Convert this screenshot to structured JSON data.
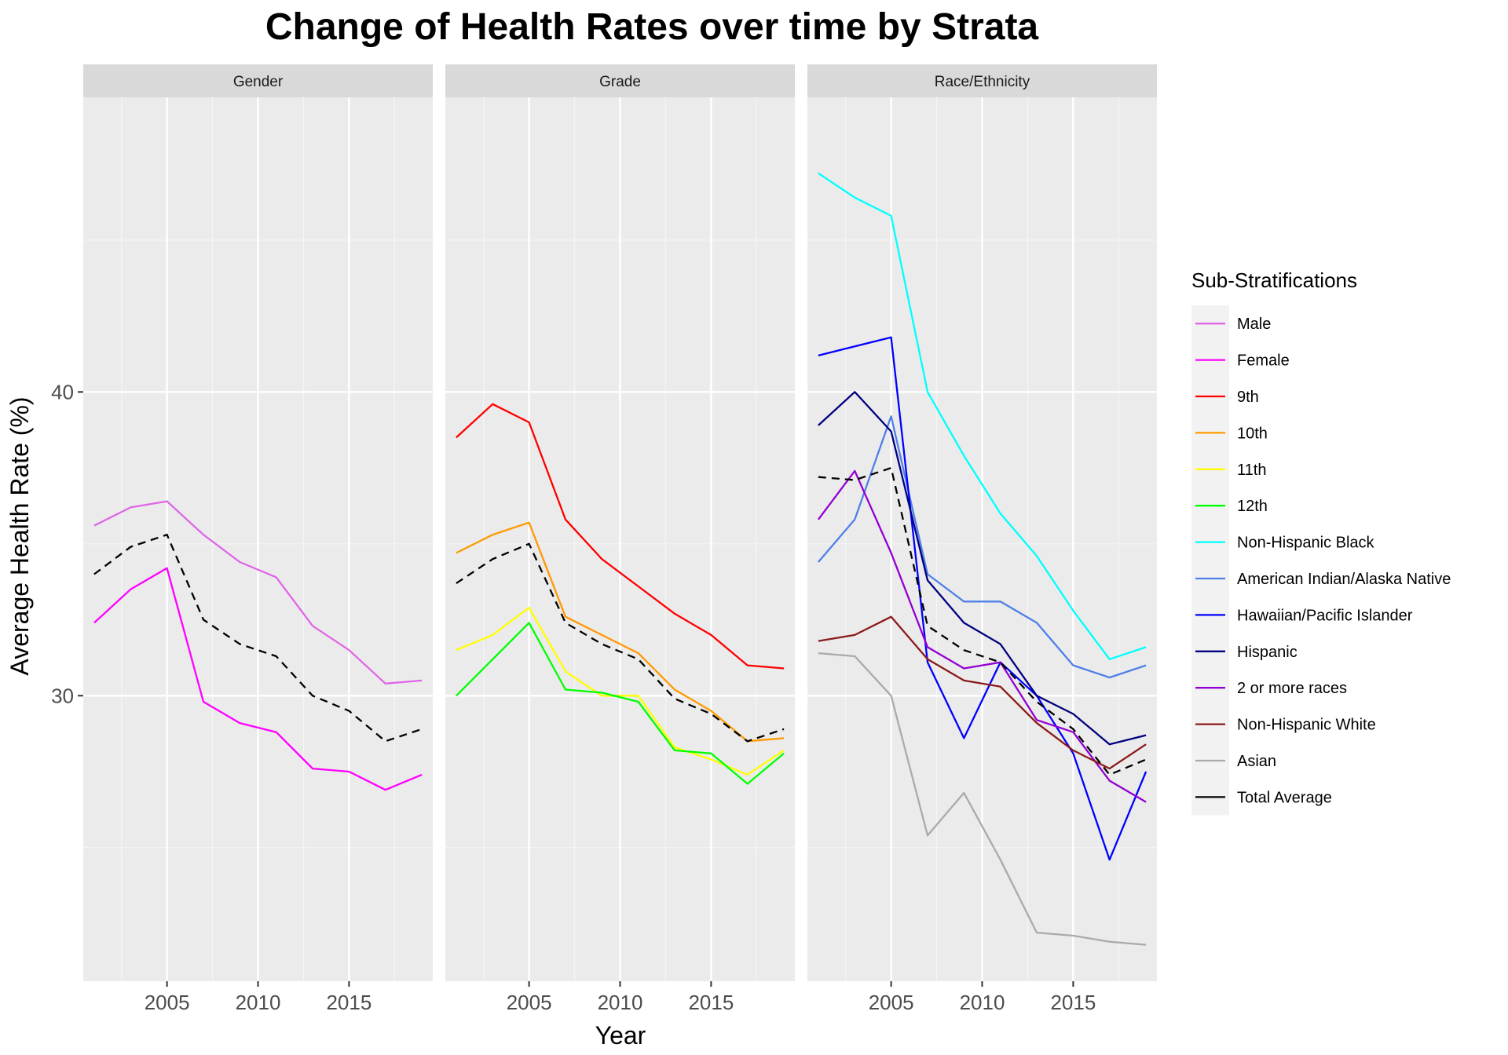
{
  "chart_data": {
    "type": "line",
    "title": "Change of Health Rates over time by Strata",
    "xlabel": "Year",
    "ylabel": "Average Health Rate (%)",
    "xlim": [
      2000.4,
      2019.6
    ],
    "ylim": [
      20.6,
      49.7
    ],
    "x_ticks": [
      2005,
      2010,
      2015
    ],
    "y_ticks": [
      30,
      40
    ],
    "grid": true,
    "legend": {
      "title": "Sub-Stratifications",
      "placement": "right",
      "entries": [
        {
          "label": "Male",
          "color": "#E066E8"
        },
        {
          "label": "Female",
          "color": "#FF00FF"
        },
        {
          "label": "9th",
          "color": "#FF0000"
        },
        {
          "label": "10th",
          "color": "#FF9900"
        },
        {
          "label": "11th",
          "color": "#FFFF00"
        },
        {
          "label": "12th",
          "color": "#00FF00"
        },
        {
          "label": "Non-Hispanic Black",
          "color": "#00FFFF"
        },
        {
          "label": "American Indian/Alaska Native",
          "color": "#4F7FE8"
        },
        {
          "label": "Hawaiian/Pacific Islander",
          "color": "#0000FF"
        },
        {
          "label": "Hispanic",
          "color": "#000080"
        },
        {
          "label": "2 or more races",
          "color": "#9400D3"
        },
        {
          "label": "Non-Hispanic White",
          "color": "#8B1A1A"
        },
        {
          "label": "Asian",
          "color": "#AAAAAA"
        },
        {
          "label": "Total Average",
          "color": "#000000"
        }
      ]
    },
    "x": [
      2001,
      2003,
      2005,
      2007,
      2009,
      2011,
      2013,
      2015,
      2017,
      2019
    ],
    "panels": [
      {
        "name": "Gender",
        "total_average": [
          34.0,
          34.9,
          35.3,
          32.5,
          31.7,
          31.3,
          30.0,
          29.5,
          28.5,
          28.9
        ],
        "series": [
          {
            "name": "Male",
            "color": "#E066E8",
            "values": [
              35.6,
              36.2,
              36.4,
              35.3,
              34.4,
              33.9,
              32.3,
              31.5,
              30.4,
              30.5
            ]
          },
          {
            "name": "Female",
            "color": "#FF00FF",
            "values": [
              32.4,
              33.5,
              34.2,
              29.8,
              29.1,
              28.8,
              27.6,
              27.5,
              26.9,
              27.4
            ]
          }
        ]
      },
      {
        "name": "Grade",
        "total_average": [
          33.7,
          34.5,
          35.0,
          32.4,
          31.7,
          31.2,
          29.9,
          29.4,
          28.5,
          28.9
        ],
        "series": [
          {
            "name": "9th",
            "color": "#FF0000",
            "values": [
              38.5,
              39.6,
              39.0,
              35.8,
              34.5,
              33.6,
              32.7,
              32.0,
              31.0,
              30.9
            ]
          },
          {
            "name": "10th",
            "color": "#FF9900",
            "values": [
              34.7,
              35.3,
              35.7,
              32.6,
              32.0,
              31.4,
              30.2,
              29.5,
              28.5,
              28.6
            ]
          },
          {
            "name": "11th",
            "color": "#FFFF00",
            "values": [
              31.5,
              32.0,
              32.9,
              30.8,
              30.0,
              30.0,
              28.3,
              27.9,
              27.4,
              28.2
            ]
          },
          {
            "name": "12th",
            "color": "#00FF00",
            "values": [
              30.0,
              31.2,
              32.4,
              30.2,
              30.1,
              29.8,
              28.2,
              28.1,
              27.1,
              28.1
            ]
          }
        ]
      },
      {
        "name": "Race/Ethnicity",
        "total_average": [
          37.2,
          37.1,
          37.5,
          32.3,
          31.5,
          31.1,
          29.8,
          28.9,
          27.4,
          27.9
        ],
        "series": [
          {
            "name": "Non-Hispanic Black",
            "color": "#00FFFF",
            "values": [
              47.2,
              46.4,
              45.8,
              40.0,
              37.9,
              36.0,
              34.6,
              32.8,
              31.2,
              31.6
            ]
          },
          {
            "name": "American Indian/Alaska Native",
            "color": "#4F7FE8",
            "values": [
              34.4,
              35.8,
              39.2,
              34.0,
              33.1,
              33.1,
              32.4,
              31.0,
              30.6,
              31.0
            ]
          },
          {
            "name": "Hawaiian/Pacific Islander",
            "color": "#0000FF",
            "values": [
              41.2,
              41.5,
              41.8,
              31.1,
              28.6,
              31.1,
              30.0,
              28.1,
              24.6,
              27.5
            ]
          },
          {
            "name": "Hispanic",
            "color": "#000080",
            "values": [
              38.9,
              40.0,
              38.7,
              33.8,
              32.4,
              31.7,
              30.0,
              29.4,
              28.4,
              28.7
            ]
          },
          {
            "name": "2 or more races",
            "color": "#9400D3",
            "values": [
              35.8,
              37.4,
              34.7,
              31.6,
              30.9,
              31.1,
              29.2,
              28.8,
              27.2,
              26.5
            ]
          },
          {
            "name": "Non-Hispanic White",
            "color": "#8B1A1A",
            "values": [
              31.8,
              32.0,
              32.6,
              31.2,
              30.5,
              30.3,
              29.1,
              28.2,
              27.6,
              28.4
            ]
          },
          {
            "name": "Asian",
            "color": "#AAAAAA",
            "values": [
              31.4,
              31.3,
              30.0,
              25.4,
              26.8,
              24.6,
              22.2,
              22.1,
              21.9,
              21.8
            ]
          }
        ]
      }
    ]
  }
}
